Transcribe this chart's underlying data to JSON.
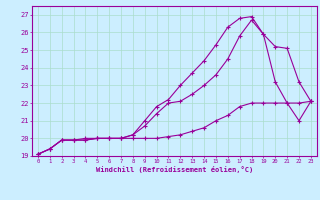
{
  "xlabel": "Windchill (Refroidissement éolien,°C)",
  "ylabel": "",
  "bg_color": "#cceeff",
  "line_color": "#990099",
  "grid_color": "#aaddcc",
  "xlim": [
    -0.5,
    23.5
  ],
  "ylim": [
    19,
    27.5
  ],
  "x_ticks": [
    0,
    1,
    2,
    3,
    4,
    5,
    6,
    7,
    8,
    9,
    10,
    11,
    12,
    13,
    14,
    15,
    16,
    17,
    18,
    19,
    20,
    21,
    22,
    23
  ],
  "y_ticks": [
    19,
    20,
    21,
    22,
    23,
    24,
    25,
    26,
    27
  ],
  "series1_x": [
    0,
    1,
    2,
    3,
    4,
    5,
    6,
    7,
    8,
    9,
    10,
    11,
    12,
    13,
    14,
    15,
    16,
    17,
    18,
    19,
    20,
    21,
    22,
    23
  ],
  "series1_y": [
    19.1,
    19.4,
    19.9,
    19.9,
    19.9,
    20.0,
    20.0,
    20.0,
    20.0,
    20.0,
    20.0,
    20.1,
    20.2,
    20.4,
    20.6,
    21.0,
    21.3,
    21.8,
    22.0,
    22.0,
    22.0,
    22.0,
    22.0,
    22.1
  ],
  "series2_x": [
    0,
    1,
    2,
    3,
    4,
    5,
    6,
    7,
    8,
    9,
    10,
    11,
    12,
    13,
    14,
    15,
    16,
    17,
    18,
    19,
    20,
    21,
    22,
    23
  ],
  "series2_y": [
    19.1,
    19.4,
    19.9,
    19.9,
    20.0,
    20.0,
    20.0,
    20.0,
    20.2,
    21.0,
    21.8,
    22.2,
    23.0,
    23.7,
    24.4,
    25.3,
    26.3,
    26.8,
    26.9,
    25.9,
    23.2,
    22.0,
    21.0,
    22.1
  ],
  "series3_x": [
    0,
    1,
    2,
    3,
    4,
    5,
    6,
    7,
    8,
    9,
    10,
    11,
    12,
    13,
    14,
    15,
    16,
    17,
    18,
    19,
    20,
    21,
    22,
    23
  ],
  "series3_y": [
    19.1,
    19.4,
    19.9,
    19.9,
    19.9,
    20.0,
    20.0,
    20.0,
    20.2,
    20.7,
    21.4,
    22.0,
    22.1,
    22.5,
    23.0,
    23.6,
    24.5,
    25.8,
    26.7,
    25.9,
    25.2,
    25.1,
    23.2,
    22.1
  ]
}
